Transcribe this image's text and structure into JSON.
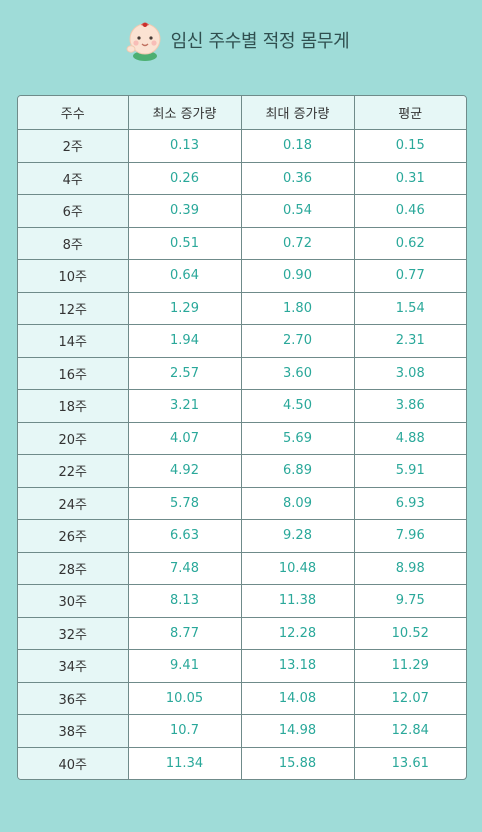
{
  "header": {
    "title": "임신 주수별 적정 몸무게",
    "icon": "baby-icon"
  },
  "colors": {
    "background": "#9fdcd8",
    "header_cell": "#e6f7f6",
    "value_text": "#2aa89a"
  },
  "table": {
    "columns": [
      "주수",
      "최소 증가량",
      "최대 증가량",
      "평균"
    ],
    "rows": [
      [
        "2주",
        "0.13",
        "0.18",
        "0.15"
      ],
      [
        "4주",
        "0.26",
        "0.36",
        "0.31"
      ],
      [
        "6주",
        "0.39",
        "0.54",
        "0.46"
      ],
      [
        "8주",
        "0.51",
        "0.72",
        "0.62"
      ],
      [
        "10주",
        "0.64",
        "0.90",
        "0.77"
      ],
      [
        "12주",
        "1.29",
        "1.80",
        "1.54"
      ],
      [
        "14주",
        "1.94",
        "2.70",
        "2.31"
      ],
      [
        "16주",
        "2.57",
        "3.60",
        "3.08"
      ],
      [
        "18주",
        "3.21",
        "4.50",
        "3.86"
      ],
      [
        "20주",
        "4.07",
        "5.69",
        "4.88"
      ],
      [
        "22주",
        "4.92",
        "6.89",
        "5.91"
      ],
      [
        "24주",
        "5.78",
        "8.09",
        "6.93"
      ],
      [
        "26주",
        "6.63",
        "9.28",
        "7.96"
      ],
      [
        "28주",
        "7.48",
        "10.48",
        "8.98"
      ],
      [
        "30주",
        "8.13",
        "11.38",
        "9.75"
      ],
      [
        "32주",
        "8.77",
        "12.28",
        "10.52"
      ],
      [
        "34주",
        "9.41",
        "13.18",
        "11.29"
      ],
      [
        "36주",
        "10.05",
        "14.08",
        "12.07"
      ],
      [
        "38주",
        "10.7",
        "14.98",
        "12.84"
      ],
      [
        "40주",
        "11.34",
        "15.88",
        "13.61"
      ]
    ]
  }
}
